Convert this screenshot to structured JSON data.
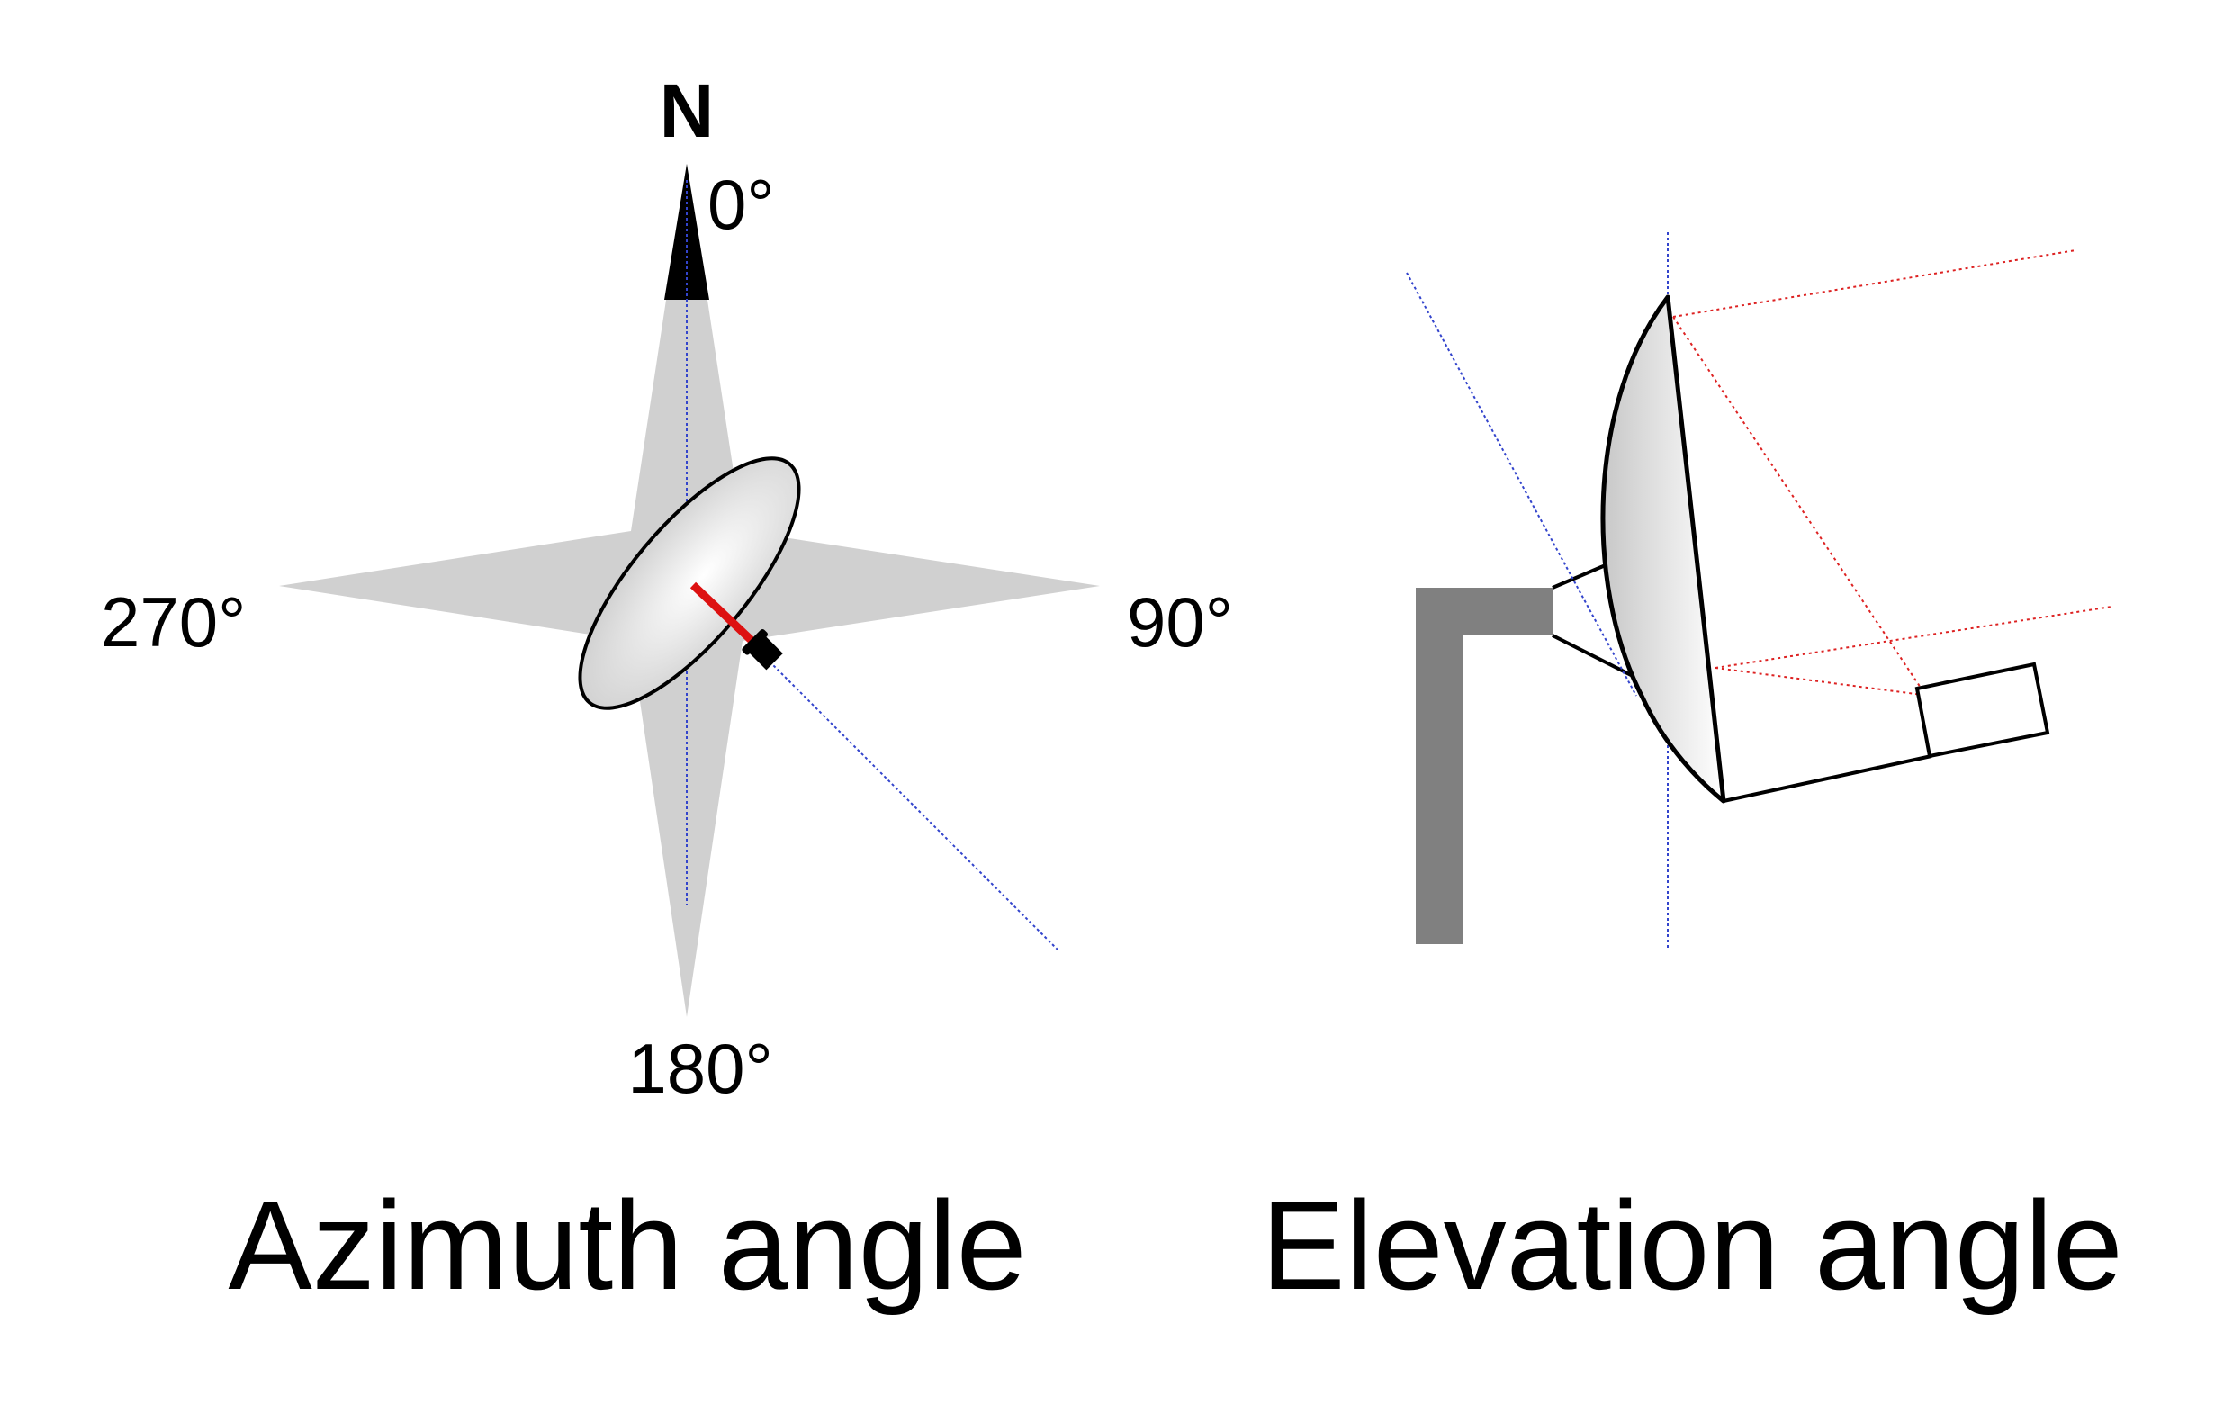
{
  "azimuth": {
    "north_label": "N",
    "deg_0": "0°",
    "deg_90": "90°",
    "deg_180": "180°",
    "deg_270": "270°",
    "caption": "Azimuth angle"
  },
  "elevation": {
    "caption": "Elevation angle"
  },
  "colors": {
    "compass_fill": "#d0d0d0",
    "north_tip": "#000000",
    "guide_line": "#3344cc",
    "signal_line": "#dd2222",
    "feed_arm": "#dd1111",
    "mount": "#808080"
  }
}
